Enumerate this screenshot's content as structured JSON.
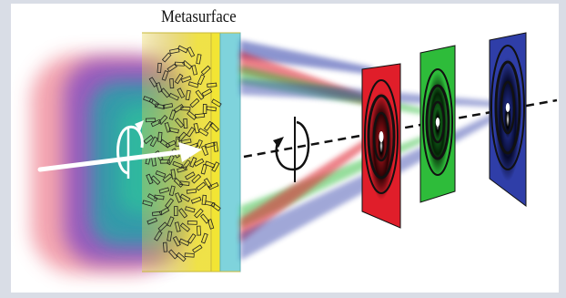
{
  "labels": {
    "metasurface": "Metasurface"
  },
  "colors": {
    "red": "#e01e2a",
    "green": "#2ebc3a",
    "blue": "#2f3ea8",
    "cyan_plate": "#7fd3dc",
    "yellow_plate": "#f2e534",
    "frame": "#d9dde6"
  },
  "icons": {
    "circular_polarization_in": "circular-polarization-arrow-icon",
    "circular_polarization_out": "circular-polarization-arrow-icon"
  }
}
